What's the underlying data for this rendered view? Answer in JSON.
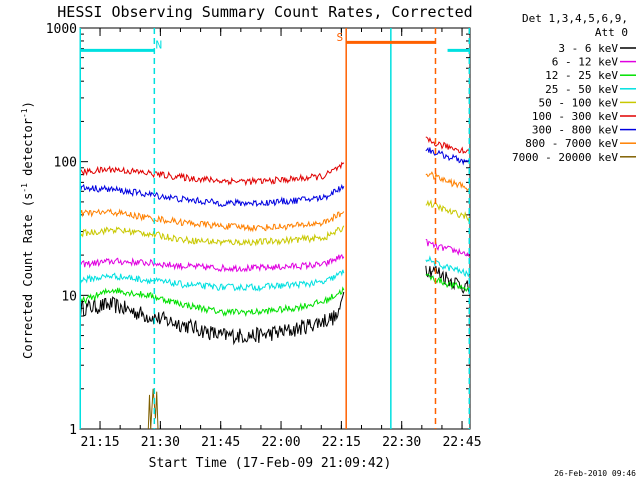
{
  "chart_data": {
    "type": "line",
    "title": "HESSI Observing Summary Count Rates, Corrected",
    "xlabel": "Start Time (17-Feb-09 21:09:42)",
    "ylabel_main": "Corrected Count Rate (s",
    "ylabel_sup1": "-1",
    "ylabel_mid": " detector",
    "ylabel_sup2": "-1",
    "ylabel_end": ")",
    "y_scale": "log",
    "ylim": [
      1,
      1000
    ],
    "xlim_minutes": [
      21.167,
      22.783
    ],
    "y_ticks": [
      {
        "value": 1,
        "label": "1"
      },
      {
        "value": 10,
        "label": "10"
      },
      {
        "value": 100,
        "label": "100"
      },
      {
        "value": 1000,
        "label": "1000"
      }
    ],
    "x_ticks": [
      {
        "value": 21.25,
        "label": "21:15"
      },
      {
        "value": 21.5,
        "label": "21:30"
      },
      {
        "value": 21.75,
        "label": "21:45"
      },
      {
        "value": 22.0,
        "label": "22:00"
      },
      {
        "value": 22.25,
        "label": "22:15"
      },
      {
        "value": 22.5,
        "label": "22:30"
      },
      {
        "value": 22.75,
        "label": "22:45"
      }
    ],
    "legend_header": [
      "Det 1,3,4,5,6,9,",
      "Att 0"
    ],
    "legend_position": "right",
    "series": [
      {
        "name": "3 - 6 keV",
        "color": "#000000",
        "segments": [
          {
            "x": [
              21.17,
              21.3,
              21.45,
              21.6,
              21.75,
              21.9,
              22.05,
              22.18,
              22.24,
              22.26
            ],
            "y": [
              8,
              8.5,
              7,
              6,
              5,
              5,
              5.5,
              6.5,
              7,
              12
            ]
          },
          {
            "x": [
              22.6,
              22.65,
              22.7,
              22.75,
              22.78
            ],
            "y": [
              16,
              15,
              13,
              12,
              11
            ]
          }
        ]
      },
      {
        "name": "6 - 12 keV",
        "color": "#e000e0",
        "segments": [
          {
            "x": [
              21.17,
              21.3,
              21.45,
              21.6,
              21.75,
              21.9,
              22.05,
              22.18,
              22.26
            ],
            "y": [
              17,
              18,
              17.5,
              16.5,
              16,
              16,
              16.5,
              17,
              20
            ]
          },
          {
            "x": [
              22.6,
              22.65,
              22.7,
              22.75,
              22.78
            ],
            "y": [
              25,
              23,
              22,
              21,
              20
            ]
          }
        ]
      },
      {
        "name": "12 - 25 keV",
        "color": "#00e000",
        "segments": [
          {
            "x": [
              21.17,
              21.3,
              21.45,
              21.6,
              21.75,
              21.9,
              22.05,
              22.18,
              22.26
            ],
            "y": [
              9,
              11,
              10,
              8.5,
              7.5,
              7.5,
              8,
              9,
              11
            ]
          },
          {
            "x": [
              22.6,
              22.65,
              22.7,
              22.75,
              22.78
            ],
            "y": [
              14,
              13,
              12,
              11.5,
              11
            ]
          }
        ]
      },
      {
        "name": "25 - 50 keV",
        "color": "#00e0e0",
        "segments": [
          {
            "x": [
              21.17,
              21.3,
              21.45,
              21.6,
              21.75,
              21.9,
              22.05,
              22.18,
              22.26
            ],
            "y": [
              13,
              14,
              13,
              12,
              11.5,
              11.5,
              12,
              12.5,
              15
            ]
          },
          {
            "x": [
              22.6,
              22.65,
              22.7,
              22.75,
              22.78
            ],
            "y": [
              19,
              17,
              16,
              15,
              14
            ]
          }
        ]
      },
      {
        "name": "50 - 100 keV",
        "color": "#c8c800",
        "segments": [
          {
            "x": [
              21.17,
              21.3,
              21.45,
              21.6,
              21.75,
              21.9,
              22.05,
              22.18,
              22.26
            ],
            "y": [
              29,
              31,
              29,
              26,
              25,
              25,
              26,
              27,
              32
            ]
          },
          {
            "x": [
              22.6,
              22.65,
              22.7,
              22.75,
              22.78
            ],
            "y": [
              50,
              46,
              42,
              40,
              38
            ]
          }
        ]
      },
      {
        "name": "100 - 300 keV",
        "color": "#e00000",
        "segments": [
          {
            "x": [
              21.17,
              21.3,
              21.45,
              21.6,
              21.75,
              21.9,
              22.05,
              22.18,
              22.26
            ],
            "y": [
              83,
              88,
              82,
              76,
              72,
              71,
              74,
              78,
              95
            ]
          },
          {
            "x": [
              22.6,
              22.65,
              22.7,
              22.75,
              22.78
            ],
            "y": [
              145,
              135,
              128,
              122,
              118
            ]
          }
        ]
      },
      {
        "name": "300 - 800 keV",
        "color": "#0000e0",
        "segments": [
          {
            "x": [
              21.17,
              21.3,
              21.45,
              21.6,
              21.75,
              21.9,
              22.05,
              22.18,
              22.26
            ],
            "y": [
              64,
              62,
              57,
              52,
              49,
              49,
              51,
              54,
              66
            ]
          },
          {
            "x": [
              22.6,
              22.65,
              22.7,
              22.75,
              22.78
            ],
            "y": [
              125,
              115,
              108,
              102,
              98
            ]
          }
        ]
      },
      {
        "name": "800 - 7000 keV",
        "color": "#ff8000",
        "segments": [
          {
            "x": [
              21.17,
              21.3,
              21.45,
              21.6,
              21.75,
              21.9,
              22.05,
              22.18,
              22.26
            ],
            "y": [
              41,
              42,
              38,
              35,
              33,
              32,
              33,
              35,
              42
            ]
          },
          {
            "x": [
              22.6,
              22.65,
              22.7,
              22.75,
              22.78
            ],
            "y": [
              82,
              76,
              70,
              66,
              63
            ]
          }
        ]
      },
      {
        "name": "7000 - 20000 keV",
        "color": "#806000",
        "segments": [
          {
            "x": [
              21.45,
              21.455,
              21.46,
              21.47,
              21.48,
              21.485,
              21.49
            ],
            "y": [
              1,
              1.8,
              1,
              2,
              1.2,
              1.9,
              1
            ]
          }
        ]
      }
    ],
    "attenuator_bars": [
      {
        "x": [
          21.167,
          21.475
        ],
        "y": 680,
        "color": "#00e0e0"
      },
      {
        "x": [
          22.69,
          22.783
        ],
        "y": 680,
        "color": "#00e0e0"
      },
      {
        "x": [
          22.27,
          22.64
        ],
        "y": 780,
        "color": "#ff6000"
      }
    ],
    "vertical_lines": [
      {
        "x": 21.168,
        "color": "#00e0e0",
        "style": "solid"
      },
      {
        "x": 21.475,
        "color": "#00e0e0",
        "style": "dashed"
      },
      {
        "x": 22.27,
        "color": "#ff6000",
        "style": "solid"
      },
      {
        "x": 22.455,
        "color": "#00e0e0",
        "style": "solid"
      },
      {
        "x": 22.64,
        "color": "#ff6000",
        "style": "dashed"
      },
      {
        "x": 22.78,
        "color": "#00e0e0",
        "style": "dashed"
      }
    ],
    "annotations": [
      {
        "text": "N",
        "x": 21.48,
        "y": 700,
        "color": "#00e0e0"
      },
      {
        "text": "S",
        "x": 22.23,
        "y": 800,
        "color": "#ff6000"
      }
    ],
    "footer": "26-Feb-2010 09:46"
  }
}
